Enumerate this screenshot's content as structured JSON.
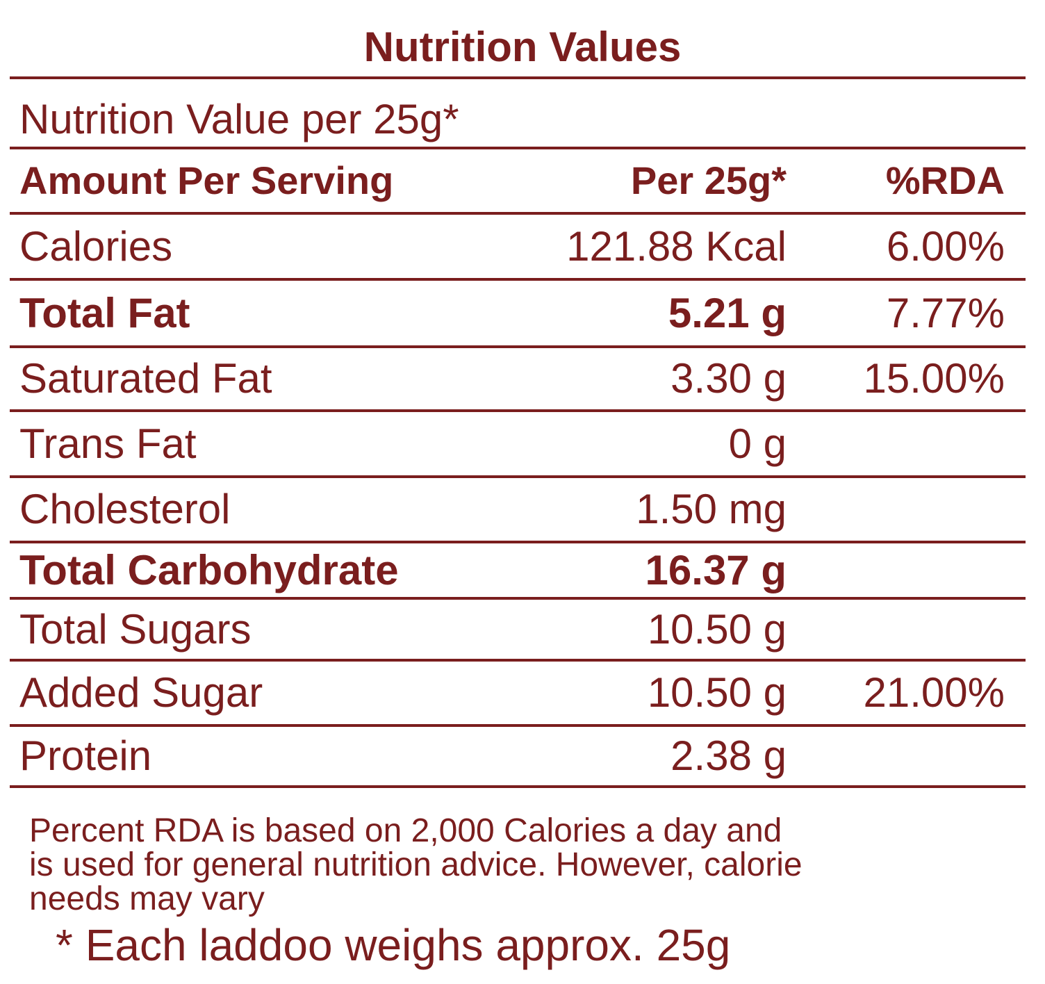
{
  "title": "Nutrition Values",
  "subtitle": "Nutrition Value per 25g*",
  "table": {
    "header": [
      "Amount Per Serving",
      "Per 25g*",
      "%RDA"
    ],
    "rows": [
      {
        "label": "Calories",
        "amount": "121.88 Kcal",
        "rda": "6.00%"
      },
      {
        "label": "Total Fat",
        "amount": "5.21 g",
        "rda": "7.77%",
        "bold": true
      },
      {
        "label": "Saturated Fat",
        "amount": "3.30 g",
        "rda": "15.00%"
      },
      {
        "label": "Trans Fat",
        "amount": "0 g"
      },
      {
        "label": "Cholesterol",
        "amount": "1.50 mg"
      },
      {
        "label": "Total Carbohydrate",
        "amount": "16.37 g",
        "bold": true
      },
      {
        "label": "Total Sugars",
        "amount": "10.50 g"
      },
      {
        "label": "Added Sugar",
        "amount": "10.50 g",
        "rda": "21.00%"
      },
      {
        "label": "Protein",
        "amount": "2.38 g"
      }
    ]
  },
  "footnote": {
    "lines": [
      "Percent RDA is based on 2,000 Calories a day and",
      "is used for general nutrition advice. However, calorie",
      "needs may vary"
    ],
    "note": "* Each laddoo weighs approx. 25g"
  }
}
